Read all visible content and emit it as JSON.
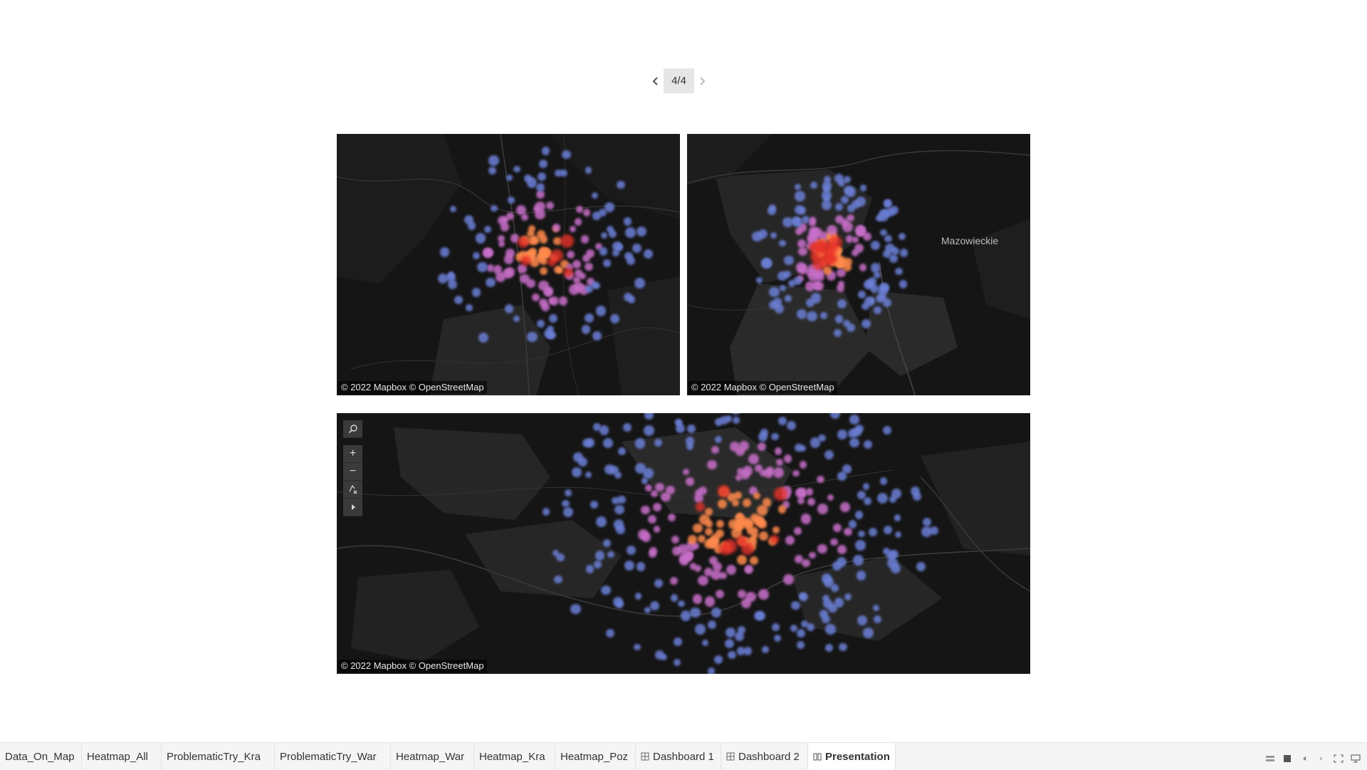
{
  "pager": {
    "label": "4/4"
  },
  "maps": {
    "top_left": {
      "attribution": "© 2022 Mapbox © OpenStreetMap"
    },
    "top_right": {
      "attribution": "© 2022 Mapbox © OpenStreetMap",
      "region_label": "Mazowieckie"
    },
    "bottom": {
      "attribution": "© 2022 Mapbox © OpenStreetMap"
    }
  },
  "map_tools": [
    "search-icon",
    "zoom-in-icon",
    "zoom-out-icon",
    "clear-filter-icon",
    "expand-arrow-icon"
  ],
  "map_tool_glyphs": {
    "zoom_in": "+",
    "zoom_out": "−"
  },
  "tabs": [
    {
      "label": "Data_On_Map",
      "icon": ""
    },
    {
      "label": "Heatmap_All",
      "icon": ""
    },
    {
      "label": "ProblematicTry_Kra",
      "icon": ""
    },
    {
      "label": "ProblematicTry_War",
      "icon": ""
    },
    {
      "label": "Heatmap_War",
      "icon": ""
    },
    {
      "label": "Heatmap_Kra",
      "icon": ""
    },
    {
      "label": "Heatmap_Poz",
      "icon": ""
    },
    {
      "label": "Dashboard 1",
      "icon": "dashboard-icon"
    },
    {
      "label": "Dashboard 2",
      "icon": "dashboard-icon"
    },
    {
      "label": "Presentation",
      "icon": "story-icon",
      "active": true
    }
  ],
  "colors": {
    "map_background": "#151515",
    "heat_low": "#6b7fd6",
    "heat_mid": "#c86fc9",
    "heat_high": "#ff8a4c",
    "heat_peak": "#e8332a"
  }
}
